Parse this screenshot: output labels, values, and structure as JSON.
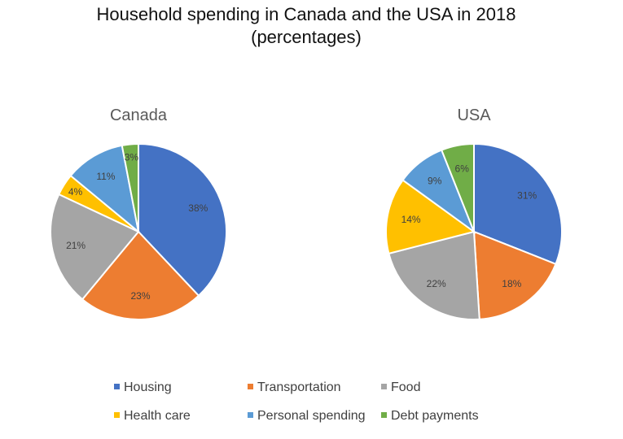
{
  "chart_data": {
    "type": "pie",
    "title": "Household spending in Canada and the USA in 2018",
    "subtitle": "(percentages)",
    "categories": [
      "Housing",
      "Transportation",
      "Food",
      "Health care",
      "Personal spending",
      "Debt payments"
    ],
    "colors": [
      "#4472C4",
      "#ED7D31",
      "#A5A5A5",
      "#FFC000",
      "#5B9BD5",
      "#70AD47"
    ],
    "legend_position": "bottom",
    "series": [
      {
        "name": "Canada",
        "values": [
          38,
          23,
          21,
          4,
          11,
          3
        ],
        "labels": [
          "38%",
          "23%",
          "21%",
          "4%",
          "11%",
          "3%"
        ]
      },
      {
        "name": "USA",
        "values": [
          31,
          18,
          22,
          14,
          9,
          6
        ],
        "labels": [
          "31%",
          "18%",
          "22%",
          "14%",
          "9%",
          "6%"
        ]
      }
    ]
  }
}
